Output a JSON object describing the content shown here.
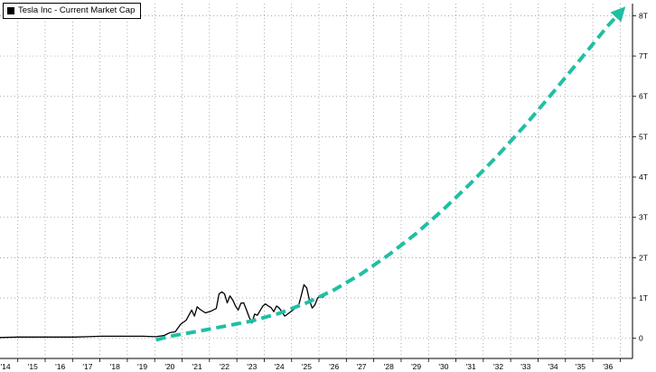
{
  "legend": {
    "label": "Tesla Inc - Current Market Cap",
    "swatch_color": "#000000"
  },
  "chart_data": {
    "type": "line",
    "title": "",
    "xlabel": "",
    "ylabel": "",
    "x_ticks": [
      "'14",
      "'15",
      "'16",
      "'17",
      "'18",
      "'19",
      "'20",
      "'21",
      "'22",
      "'23",
      "'24",
      "'25",
      "'26",
      "'27",
      "'28",
      "'29",
      "'30",
      "'31",
      "'32",
      "'33",
      "'34",
      "'35",
      "'36"
    ],
    "y_ticks": [
      "0",
      "1T",
      "2T",
      "3T",
      "4T",
      "5T",
      "6T",
      "7T",
      "8T"
    ],
    "xlim": [
      2013.8,
      2036.9
    ],
    "ylim": [
      -0.5,
      8.3
    ],
    "grid": true,
    "legend_position": "top-left",
    "series": [
      {
        "name": "Tesla Inc - Current Market Cap",
        "color": "#000000",
        "style": "solid",
        "points": [
          [
            2013.8,
            0.02
          ],
          [
            2014.5,
            0.03
          ],
          [
            2015.0,
            0.03
          ],
          [
            2015.5,
            0.03
          ],
          [
            2016.0,
            0.03
          ],
          [
            2016.5,
            0.03
          ],
          [
            2017.0,
            0.04
          ],
          [
            2017.5,
            0.05
          ],
          [
            2018.0,
            0.05
          ],
          [
            2018.5,
            0.05
          ],
          [
            2019.0,
            0.05
          ],
          [
            2019.5,
            0.04
          ],
          [
            2019.8,
            0.07
          ],
          [
            2020.0,
            0.14
          ],
          [
            2020.2,
            0.16
          ],
          [
            2020.4,
            0.35
          ],
          [
            2020.6,
            0.45
          ],
          [
            2020.8,
            0.7
          ],
          [
            2020.9,
            0.55
          ],
          [
            2021.0,
            0.78
          ],
          [
            2021.1,
            0.72
          ],
          [
            2021.3,
            0.63
          ],
          [
            2021.5,
            0.67
          ],
          [
            2021.7,
            0.74
          ],
          [
            2021.8,
            1.1
          ],
          [
            2021.9,
            1.15
          ],
          [
            2022.0,
            1.1
          ],
          [
            2022.1,
            0.88
          ],
          [
            2022.2,
            1.05
          ],
          [
            2022.3,
            0.95
          ],
          [
            2022.4,
            0.8
          ],
          [
            2022.5,
            0.7
          ],
          [
            2022.6,
            0.87
          ],
          [
            2022.7,
            0.88
          ],
          [
            2022.8,
            0.71
          ],
          [
            2022.9,
            0.52
          ],
          [
            2023.0,
            0.38
          ],
          [
            2023.1,
            0.6
          ],
          [
            2023.2,
            0.57
          ],
          [
            2023.4,
            0.8
          ],
          [
            2023.5,
            0.85
          ],
          [
            2023.6,
            0.8
          ],
          [
            2023.7,
            0.76
          ],
          [
            2023.8,
            0.66
          ],
          [
            2023.9,
            0.8
          ],
          [
            2024.0,
            0.75
          ],
          [
            2024.2,
            0.55
          ],
          [
            2024.3,
            0.6
          ],
          [
            2024.5,
            0.7
          ],
          [
            2024.7,
            0.8
          ],
          [
            2024.8,
            1.05
          ],
          [
            2024.9,
            1.33
          ],
          [
            2025.0,
            1.25
          ],
          [
            2025.1,
            0.95
          ],
          [
            2025.2,
            0.75
          ],
          [
            2025.3,
            0.83
          ],
          [
            2025.4,
            1.0
          ],
          [
            2025.5,
            1.05
          ],
          [
            2025.6,
            1.02
          ],
          [
            2025.7,
            1.12
          ]
        ]
      },
      {
        "name": "",
        "color": "#1fbfa3",
        "style": "dashed",
        "points": [
          [
            2019.5,
            -0.04
          ],
          [
            2020.0,
            0.05
          ],
          [
            2021.0,
            0.17
          ],
          [
            2022.0,
            0.3
          ],
          [
            2023.0,
            0.43
          ],
          [
            2024.0,
            0.62
          ],
          [
            2025.0,
            0.88
          ],
          [
            2026.0,
            1.2
          ],
          [
            2027.0,
            1.6
          ],
          [
            2028.0,
            2.07
          ],
          [
            2029.0,
            2.6
          ],
          [
            2030.0,
            3.2
          ],
          [
            2031.0,
            3.85
          ],
          [
            2032.0,
            4.55
          ],
          [
            2033.0,
            5.3
          ],
          [
            2034.0,
            6.1
          ],
          [
            2035.0,
            6.92
          ],
          [
            2036.0,
            7.75
          ],
          [
            2036.5,
            8.12
          ]
        ]
      }
    ]
  }
}
